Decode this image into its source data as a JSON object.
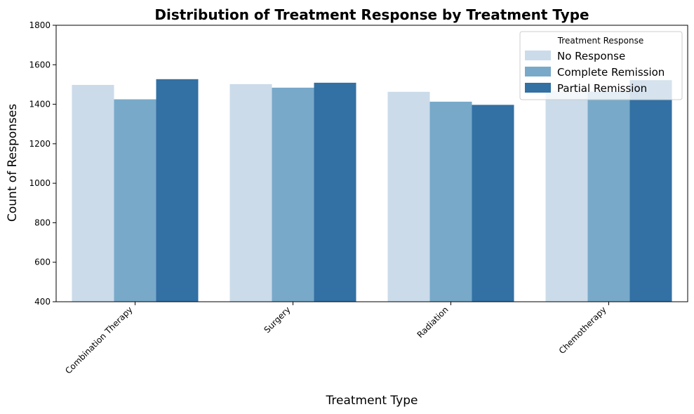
{
  "chart_data": {
    "type": "bar",
    "title": "Distribution of Treatment Response by Treatment Type",
    "xlabel": "Treatment Type",
    "ylabel": "Count of Responses",
    "ylim": [
      400,
      1800
    ],
    "yticks": [
      400,
      600,
      800,
      1000,
      1200,
      1400,
      1600,
      1800
    ],
    "categories": [
      "Combination Therapy",
      "Surgery",
      "Radiation",
      "Chemotherapy"
    ],
    "series": [
      {
        "name": "No Response",
        "color": "#cbdbea",
        "values": [
          1498,
          1502,
          1463,
          1470
        ]
      },
      {
        "name": "Complete Remission",
        "color": "#78a9c9",
        "values": [
          1425,
          1484,
          1413,
          1465
        ]
      },
      {
        "name": "Partial Remission",
        "color": "#3370a3",
        "values": [
          1527,
          1509,
          1397,
          1522
        ]
      }
    ],
    "legend": {
      "title": "Treatment Response",
      "placement": "top-right"
    },
    "grid": false
  }
}
